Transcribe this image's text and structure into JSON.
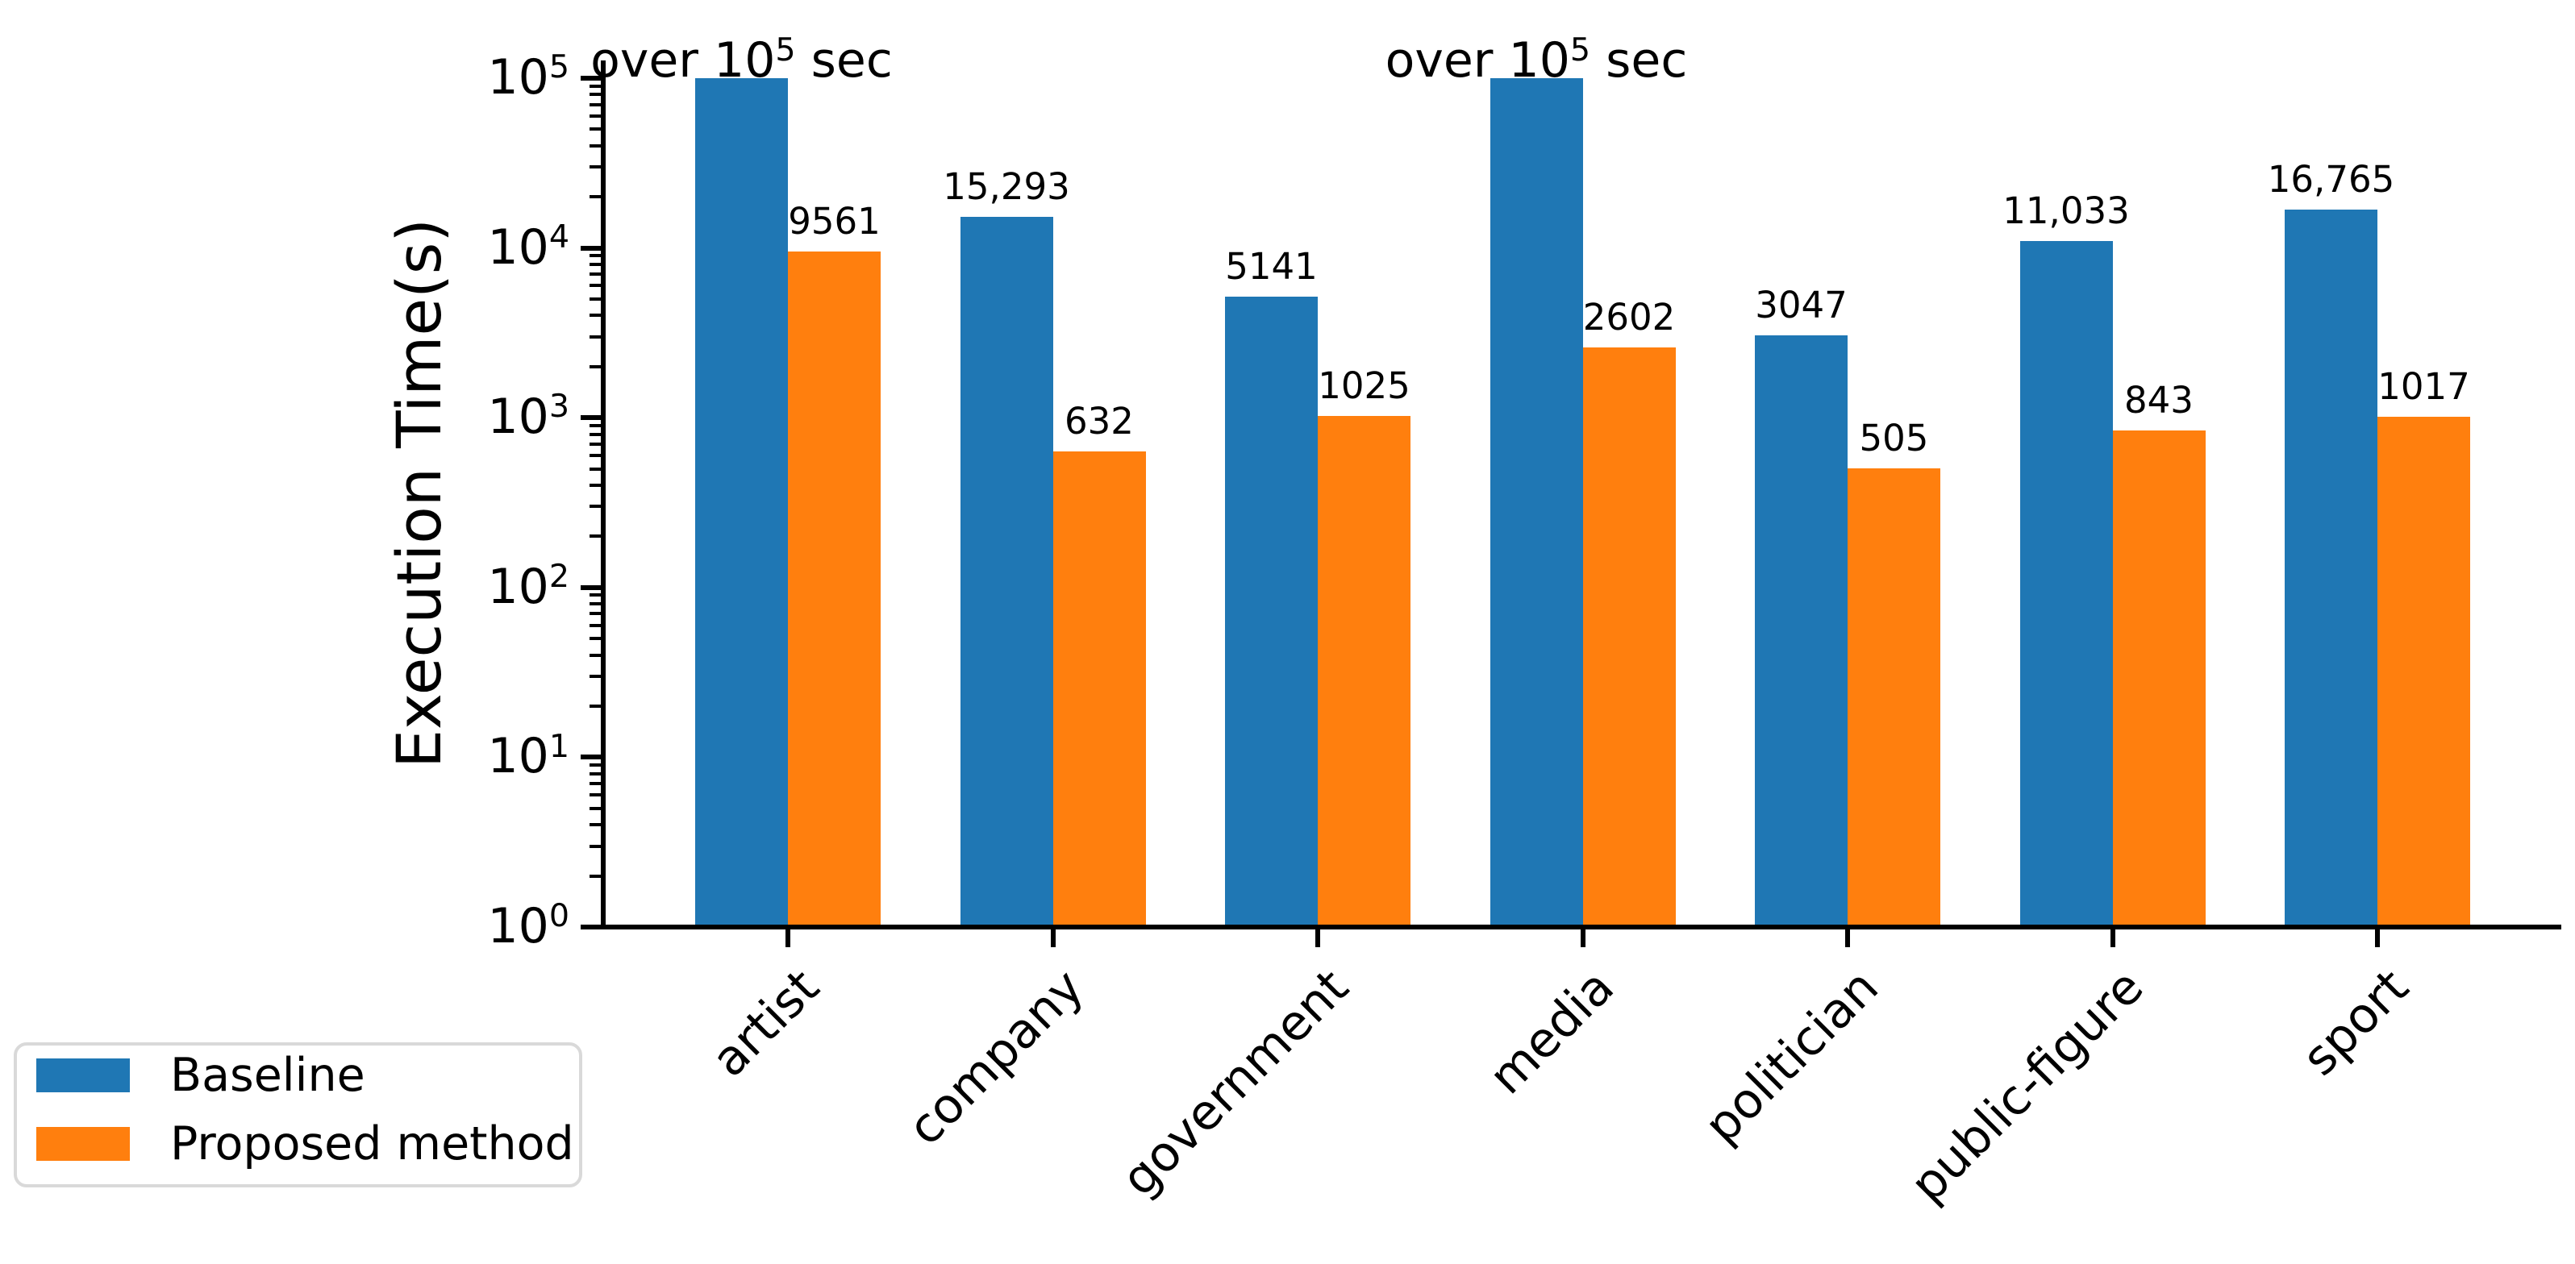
{
  "chart_data": {
    "type": "bar",
    "title": "",
    "xlabel": "",
    "ylabel": "Execution Time(s)",
    "yscale": "log",
    "ylim": [
      1,
      100000
    ],
    "y_tick_labels": [
      "10^0",
      "10^1",
      "10^2",
      "10^3",
      "10^4",
      "10^5"
    ],
    "grid": false,
    "categories": [
      "artist",
      "company",
      "government",
      "media",
      "politician",
      "public-figure",
      "sport"
    ],
    "series": [
      {
        "name": "Baseline",
        "color": "#1f77b4",
        "values": [
          100000,
          15293,
          5141,
          100000,
          3047,
          11033,
          16765
        ],
        "bar_labels": [
          "over 10^5 sec",
          "15,293",
          "5141",
          "over 10^5 sec",
          "3047",
          "11,033",
          "16,765"
        ]
      },
      {
        "name": "Proposed method",
        "color": "#ff7f0e",
        "values": [
          9561,
          632,
          1025,
          2602,
          505,
          843,
          1017
        ],
        "bar_labels": [
          "9561",
          "632",
          "1025",
          "2602",
          "505",
          "843",
          "1017"
        ]
      }
    ],
    "legend": {
      "position": "lower left",
      "border_color": "#d9d9d9"
    },
    "axis_color": "#000000",
    "background_color": "#ffffff"
  }
}
